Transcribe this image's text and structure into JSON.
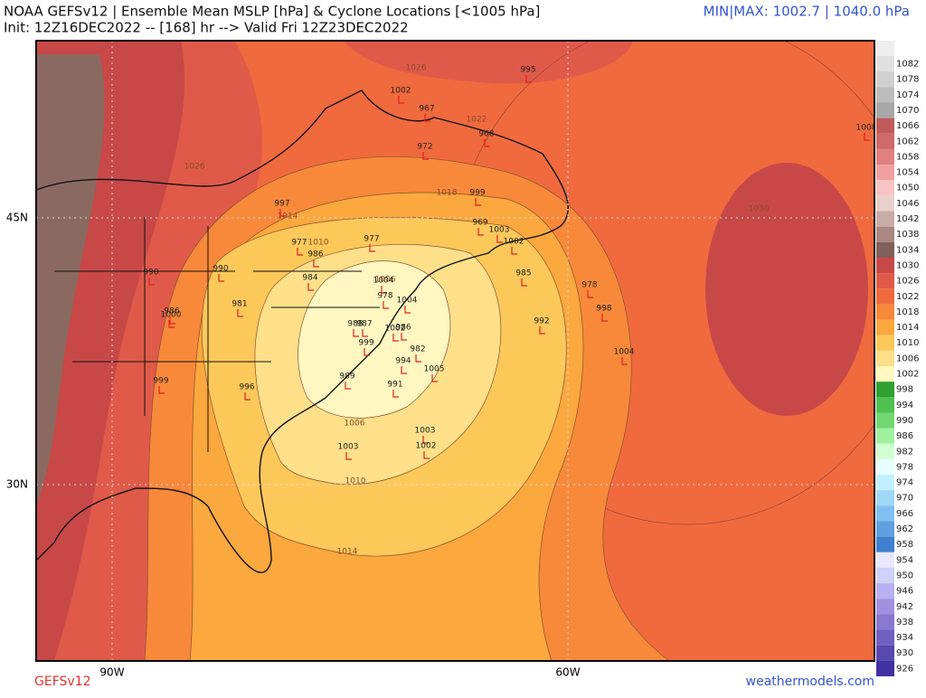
{
  "header": {
    "title": "NOAA GEFSv12 | Ensemble Mean MSLP [hPa] & Cyclone Locations [<1005 hPa]",
    "subtitle": "Init: 12Z16DEC2022 -- [168] hr --> Valid Fri 12Z23DEC2022",
    "minmax": "MIN|MAX: 1002.7 | 1040.0 hPa"
  },
  "map": {
    "lat_labels": [
      "45N",
      "30N"
    ],
    "lon_labels": [
      "90W",
      "60W"
    ],
    "contour_labels": [
      1026,
      1022,
      1026,
      1018,
      1014,
      1010,
      1006,
      1030,
      1006,
      1010,
      1014
    ],
    "cyclones": [
      995,
      1002,
      967,
      968,
      972,
      1008,
      999,
      997,
      969,
      1003,
      1002,
      977,
      977,
      986,
      990,
      990,
      984,
      985,
      978,
      1004,
      978,
      1004,
      998,
      981,
      986,
      1000,
      992,
      988,
      987,
      1002,
      986,
      999,
      982,
      994,
      1005,
      1004,
      989,
      999,
      996,
      991,
      1003,
      1003,
      1002
    ]
  },
  "colorbar": {
    "labels": [
      1082,
      1078,
      1074,
      1070,
      1066,
      1062,
      1058,
      1054,
      1050,
      1046,
      1042,
      1038,
      1034,
      1030,
      1026,
      1022,
      1018,
      1014,
      1010,
      1006,
      1002,
      998,
      994,
      990,
      986,
      982,
      978,
      974,
      970,
      966,
      962,
      958,
      954,
      950,
      946,
      942,
      938,
      934,
      930,
      926
    ],
    "colors": [
      "#e0e0e0",
      "#d0d0d0",
      "#bdbdbd",
      "#a8a8a8",
      "#c05a5a",
      "#d06a6a",
      "#e08080",
      "#f0a0a0",
      "#f8c4c4",
      "#e8d0cc",
      "#c8aca8",
      "#a88880",
      "#806058",
      "#c84848",
      "#e05a4a",
      "#f06a3e",
      "#f8893a",
      "#fba83e",
      "#fcc85a",
      "#fee08a",
      "#fff8c0",
      "#30a030",
      "#50c050",
      "#70d870",
      "#a0f0a0",
      "#d0ffd0",
      "#e8ffff",
      "#c0f0ff",
      "#a0d8f8",
      "#80c0f0",
      "#60a0e0",
      "#4080d0",
      "#e8e8ff",
      "#d0d0f8",
      "#b8b0f0",
      "#a090e0",
      "#8878d0",
      "#7060c0",
      "#5848b0",
      "#4030a0"
    ]
  },
  "footer": {
    "model": "GEFSv12",
    "site": "weathermodels.com"
  }
}
